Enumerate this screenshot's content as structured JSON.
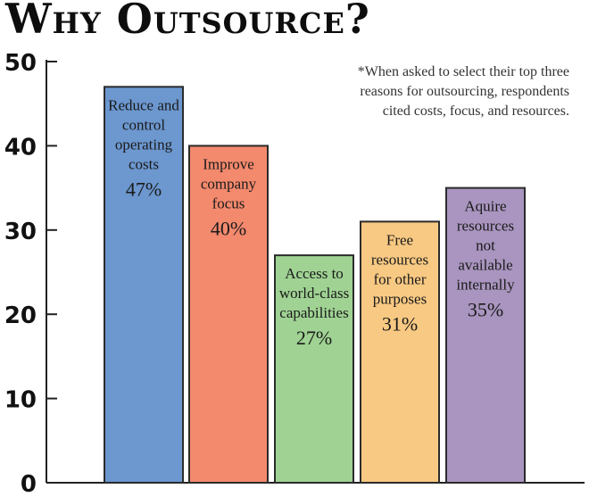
{
  "chart_data": {
    "type": "bar",
    "title": "Why Outsource?",
    "note": "*When asked to select their top three reasons for outsourcing, respondents cited costs, focus, and resources.",
    "ylim": [
      0,
      50
    ],
    "yticks": [
      "0",
      "10",
      "20",
      "30",
      "40",
      "50"
    ],
    "categories": [
      [
        "Reduce and",
        "control",
        "operating",
        "costs"
      ],
      [
        "Improve",
        "company",
        "focus"
      ],
      [
        "Access to",
        "world-class",
        "capabilities"
      ],
      [
        "Free",
        "resources",
        "for other",
        "purposes"
      ],
      [
        "Aquire",
        "resources",
        "not",
        "available",
        "internally"
      ]
    ],
    "values": [
      47,
      40,
      27,
      31,
      35
    ],
    "value_labels": [
      "47%",
      "40%",
      "27%",
      "31%",
      "35%"
    ],
    "colors": [
      "#6c97cf",
      "#f3896d",
      "#9fd293",
      "#f8c983",
      "#a995bf"
    ],
    "grid": false
  }
}
